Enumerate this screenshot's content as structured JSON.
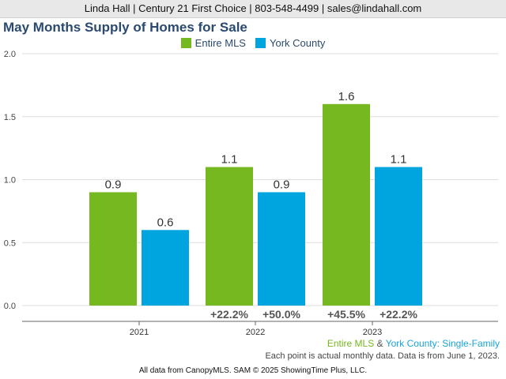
{
  "header": {
    "text": "Linda Hall | Century 21 First Choice | 803-548-4499 | sales@lindahall.com"
  },
  "footer": {
    "series_note_a": "Entire MLS",
    "series_note_amp": " & ",
    "series_note_b": "York County",
    "series_note_c": ": Single-Family",
    "data_note": "Each point is actual monthly data. Data is from June 1, 2023.",
    "credit": "All data from CanopyMLS. SAM © 2025 ShowingTime Plus, LLC."
  },
  "colors": {
    "series_a": "#76b81f",
    "series_b": "#00a5e0",
    "axis_text": "#444444",
    "grid": "#dddddd"
  },
  "chart_data": {
    "type": "bar",
    "title": "May Months Supply of Homes for Sale",
    "categories": [
      "2021",
      "2022",
      "2023"
    ],
    "series": [
      {
        "name": "Entire MLS",
        "values": [
          0.9,
          1.1,
          1.6
        ],
        "change": [
          "",
          "+22.2%",
          "+45.5%"
        ]
      },
      {
        "name": "York County",
        "values": [
          0.6,
          0.9,
          1.1
        ],
        "change": [
          "",
          "+50.0%",
          "+22.2%"
        ]
      }
    ],
    "value_labels": [
      [
        "0.9",
        "1.1",
        "1.6"
      ],
      [
        "0.6",
        "0.9",
        "1.1"
      ]
    ],
    "yticks": [
      "0.0",
      "0.5",
      "1.0",
      "1.5",
      "2.0"
    ],
    "ylim": [
      0,
      2.0
    ],
    "grid": true,
    "legend": "top-center"
  }
}
